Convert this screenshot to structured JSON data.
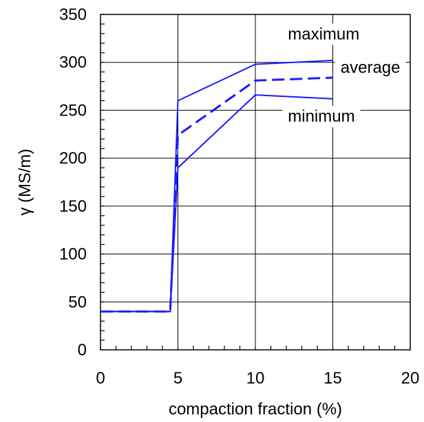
{
  "chart_data": {
    "type": "line",
    "title": "",
    "xlabel": "compaction fraction (%)",
    "ylabel": "γ (MS/m)",
    "xlim": [
      0,
      20
    ],
    "ylim": [
      0,
      350
    ],
    "xticks": [
      0,
      5,
      10,
      15,
      20
    ],
    "yticks": [
      0,
      50,
      100,
      150,
      200,
      250,
      300,
      350
    ],
    "grid": true,
    "line_color": "#1a1aff",
    "series": [
      {
        "name": "maximum",
        "style": "solid",
        "x": [
          0,
          4,
          4.5,
          5,
          10,
          15
        ],
        "y": [
          40,
          40,
          40,
          260,
          298,
          302
        ]
      },
      {
        "name": "average",
        "style": "dashed",
        "x": [
          0,
          4,
          4.5,
          5,
          10,
          15
        ],
        "y": [
          40,
          40,
          40,
          224,
          281,
          284
        ]
      },
      {
        "name": "minimum",
        "style": "solid",
        "x": [
          0,
          4,
          4.5,
          5,
          10,
          15
        ],
        "y": [
          40,
          40,
          40,
          190,
          266,
          262
        ]
      }
    ],
    "annotations": [
      {
        "text": "maximum",
        "anchor_x": 12.1,
        "anchor_y": 324
      },
      {
        "text": "average",
        "anchor_x": 15.5,
        "anchor_y": 289
      },
      {
        "text": "minimum",
        "anchor_x": 12.1,
        "anchor_y": 238
      }
    ]
  }
}
